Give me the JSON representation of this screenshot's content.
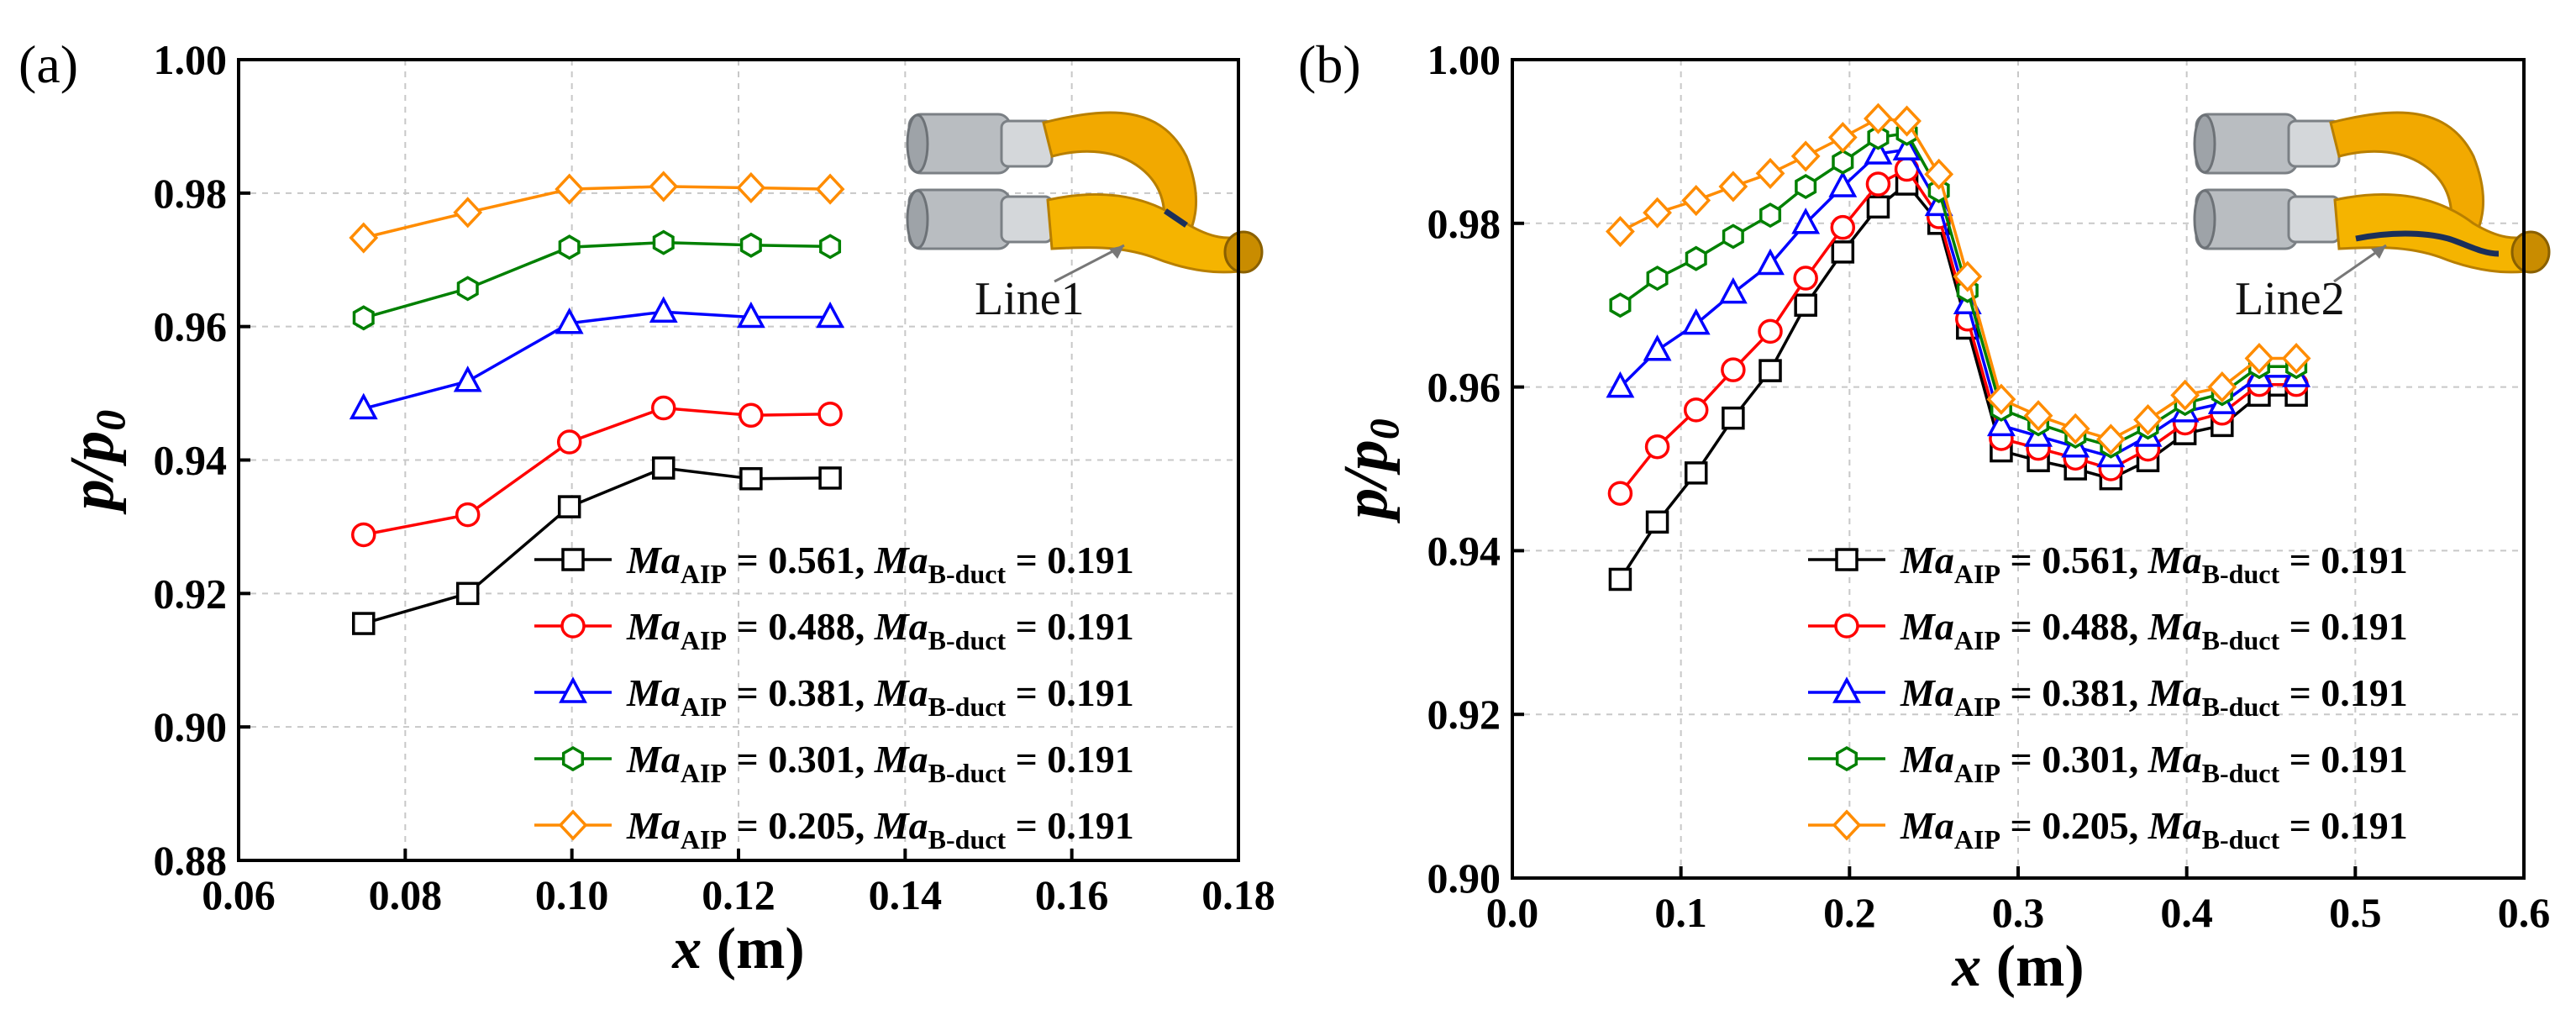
{
  "chart_data": [
    {
      "id": "a",
      "type": "line",
      "panel_label": "(a)",
      "xlabel": "x (m)",
      "xlabel_var": "x",
      "xlabel_unit": "(m)",
      "ylabel": "p/p0",
      "ylabel_var": "p/p",
      "ylabel_sub": "0",
      "xlim": [
        0.06,
        0.18
      ],
      "ylim": [
        0.88,
        1.0
      ],
      "xticks": [
        0.06,
        0.08,
        0.1,
        0.12,
        0.14,
        0.16,
        0.18
      ],
      "xtick_labels": [
        "0.06",
        "0.08",
        "0.10",
        "0.12",
        "0.14",
        "0.16",
        "0.18"
      ],
      "yticks": [
        0.88,
        0.9,
        0.92,
        0.94,
        0.96,
        0.98,
        1.0
      ],
      "ytick_labels": [
        "0.88",
        "0.90",
        "0.92",
        "0.94",
        "0.96",
        "0.98",
        "1.00"
      ],
      "grid": true,
      "legend_position": "bottom-right",
      "callout": "Line1",
      "x": [
        0.075,
        0.0875,
        0.0997,
        0.111,
        0.1215,
        0.131
      ],
      "series": [
        {
          "name": "MaAIP = 0.561, MaB-duct = 0.191",
          "ma_aip": "0.561",
          "ma_bduct": "0.191",
          "color": "#000000",
          "marker": "square",
          "values": [
            0.9155,
            0.92,
            0.933,
            0.9388,
            0.9372,
            0.9373
          ]
        },
        {
          "name": "MaAIP = 0.488, MaB-duct = 0.191",
          "ma_aip": "0.488",
          "ma_bduct": "0.191",
          "color": "#ff0000",
          "marker": "circle",
          "values": [
            0.9288,
            0.9318,
            0.9427,
            0.9478,
            0.9467,
            0.9469
          ]
        },
        {
          "name": "MaAIP = 0.381, MaB-duct = 0.191",
          "ma_aip": "0.381",
          "ma_bduct": "0.191",
          "color": "#0000ff",
          "marker": "triangle",
          "values": [
            0.9477,
            0.9518,
            0.9605,
            0.9622,
            0.9614,
            0.9614
          ]
        },
        {
          "name": "MaAIP = 0.301, MaB-duct = 0.191",
          "ma_aip": "0.301",
          "ma_bduct": "0.191",
          "color": "#008000",
          "marker": "hexagon",
          "values": [
            0.9613,
            0.9657,
            0.9719,
            0.9726,
            0.9722,
            0.972
          ]
        },
        {
          "name": "MaAIP = 0.205, MaB-duct = 0.191",
          "ma_aip": "0.205",
          "ma_bduct": "0.191",
          "color": "#ff8c00",
          "marker": "diamond",
          "values": [
            0.9733,
            0.9771,
            0.9806,
            0.981,
            0.9808,
            0.9806
          ]
        }
      ]
    },
    {
      "id": "b",
      "type": "line",
      "panel_label": "(b)",
      "xlabel": "x (m)",
      "xlabel_var": "x",
      "xlabel_unit": "(m)",
      "ylabel": "p/p0",
      "ylabel_var": "p/p",
      "ylabel_sub": "0",
      "xlim": [
        0.0,
        0.6
      ],
      "ylim": [
        0.9,
        1.0
      ],
      "xticks": [
        0.0,
        0.1,
        0.2,
        0.3,
        0.4,
        0.5,
        0.6
      ],
      "xtick_labels": [
        "0.0",
        "0.1",
        "0.2",
        "0.3",
        "0.4",
        "0.5",
        "0.6"
      ],
      "yticks": [
        0.9,
        0.92,
        0.94,
        0.96,
        0.98,
        1.0
      ],
      "ytick_labels": [
        "0.90",
        "0.92",
        "0.94",
        "0.96",
        "0.98",
        "1.00"
      ],
      "grid": true,
      "legend_position": "bottom-right",
      "callout": "Line2",
      "x": [
        0.064,
        0.086,
        0.109,
        0.131,
        0.153,
        0.174,
        0.196,
        0.217,
        0.234,
        0.253,
        0.27,
        0.29,
        0.312,
        0.334,
        0.355,
        0.377,
        0.399,
        0.421,
        0.443,
        0.465
      ],
      "series": [
        {
          "name": "MaAIP = 0.561, MaB-duct = 0.191",
          "ma_aip": "0.561",
          "ma_bduct": "0.191",
          "color": "#000000",
          "marker": "square",
          "values": [
            0.9365,
            0.9435,
            0.9495,
            0.9562,
            0.962,
            0.97,
            0.9765,
            0.982,
            0.9848,
            0.98,
            0.9672,
            0.9522,
            0.951,
            0.95,
            0.9488,
            0.951,
            0.9543,
            0.9553,
            0.959,
            0.959
          ]
        },
        {
          "name": "MaAIP = 0.488, MaB-duct = 0.191",
          "ma_aip": "0.488",
          "ma_bduct": "0.191",
          "color": "#ff0000",
          "marker": "circle",
          "values": [
            0.947,
            0.9527,
            0.9572,
            0.9621,
            0.9668,
            0.9733,
            0.9795,
            0.9848,
            0.9866,
            0.9808,
            0.9683,
            0.9537,
            0.9525,
            0.9513,
            0.95,
            0.9524,
            0.9556,
            0.9568,
            0.9603,
            0.9603
          ]
        },
        {
          "name": "MaAIP = 0.381, MaB-duct = 0.191",
          "ma_aip": "0.381",
          "ma_bduct": "0.191",
          "color": "#0000ff",
          "marker": "triangle",
          "values": [
            0.96,
            0.9645,
            0.9677,
            0.9715,
            0.975,
            0.98,
            0.9845,
            0.9885,
            0.989,
            0.9822,
            0.9702,
            0.9553,
            0.954,
            0.9527,
            0.9515,
            0.954,
            0.957,
            0.958,
            0.9613,
            0.9613
          ]
        },
        {
          "name": "MaAIP = 0.301, MaB-duct = 0.191",
          "ma_aip": "0.301",
          "ma_bduct": "0.191",
          "color": "#008000",
          "marker": "hexagon",
          "values": [
            0.97,
            0.9733,
            0.9757,
            0.9784,
            0.981,
            0.9845,
            0.9875,
            0.9905,
            0.991,
            0.984,
            0.9718,
            0.9573,
            0.9555,
            0.954,
            0.9528,
            0.9551,
            0.958,
            0.9592,
            0.9625,
            0.9625
          ]
        },
        {
          "name": "MaAIP = 0.205, MaB-duct = 0.191",
          "ma_aip": "0.205",
          "ma_bduct": "0.191",
          "color": "#ff8c00",
          "marker": "diamond",
          "values": [
            0.979,
            0.9813,
            0.9828,
            0.9845,
            0.9861,
            0.9882,
            0.9905,
            0.9928,
            0.9925,
            0.986,
            0.9735,
            0.9585,
            0.9565,
            0.9549,
            0.9536,
            0.956,
            0.959,
            0.96,
            0.9635,
            0.9635
          ]
        }
      ]
    }
  ]
}
